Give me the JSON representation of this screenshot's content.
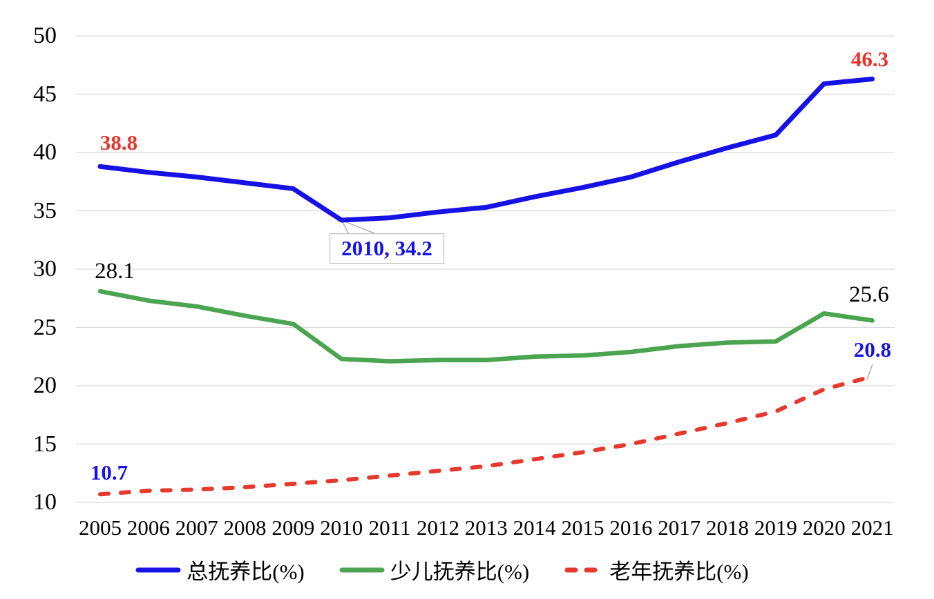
{
  "chart_data": {
    "type": "line",
    "title": "",
    "xlabel": "",
    "ylabel": "",
    "x": [
      "2005",
      "2006",
      "2007",
      "2008",
      "2009",
      "2010",
      "2011",
      "2012",
      "2013",
      "2014",
      "2015",
      "2016",
      "2017",
      "2018",
      "2019",
      "2020",
      "2021"
    ],
    "series": [
      {
        "name": "总抚养比(%)",
        "color": "#1612e6",
        "style": "solid",
        "values": [
          38.8,
          38.3,
          37.9,
          37.4,
          36.9,
          34.2,
          34.4,
          34.9,
          35.3,
          36.2,
          37.0,
          37.9,
          39.2,
          40.4,
          41.5,
          45.9,
          46.3
        ]
      },
      {
        "name": "少儿抚养比(%)",
        "color": "#4ba44f",
        "style": "solid",
        "values": [
          28.1,
          27.3,
          26.8,
          26.0,
          25.3,
          22.3,
          22.1,
          22.2,
          22.2,
          22.5,
          22.6,
          22.9,
          23.4,
          23.7,
          23.8,
          26.2,
          25.6
        ]
      },
      {
        "name": "老年抚养比(%)",
        "color": "#e7382c",
        "style": "dashed",
        "values": [
          10.7,
          11.0,
          11.1,
          11.3,
          11.6,
          11.9,
          12.3,
          12.7,
          13.1,
          13.7,
          14.3,
          15.0,
          15.9,
          16.8,
          17.8,
          19.7,
          20.8
        ]
      }
    ],
    "ylim": [
      10,
      50
    ],
    "y_ticks": [
      "10",
      "15",
      "20",
      "25",
      "30",
      "35",
      "40",
      "45",
      "50"
    ],
    "grid": "horizontal",
    "grid_color": "#d9d9d9",
    "legend_position": "bottom",
    "annotations": [
      {
        "text": "38.8",
        "year": "2005",
        "value": 38.8,
        "color": "#e8352b",
        "bold": true,
        "boxed": false
      },
      {
        "text": "2010, 34.2",
        "year": "2010",
        "value": 34.2,
        "color": "#1612e6",
        "bold": true,
        "boxed": true
      },
      {
        "text": "46.3",
        "year": "2021",
        "value": 46.3,
        "color": "#e8352b",
        "bold": true,
        "boxed": false
      },
      {
        "text": "28.1",
        "year": "2005",
        "value": 28.1,
        "color": "#000000",
        "bold": false,
        "boxed": false
      },
      {
        "text": "25.6",
        "year": "2021",
        "value": 25.6,
        "color": "#000000",
        "bold": false,
        "boxed": false
      },
      {
        "text": "10.7",
        "year": "2005",
        "value": 10.7,
        "color": "#1612e6",
        "bold": true,
        "boxed": false
      },
      {
        "text": "20.8",
        "year": "2021",
        "value": 20.8,
        "color": "#1612e6",
        "bold": true,
        "boxed": false
      }
    ]
  }
}
